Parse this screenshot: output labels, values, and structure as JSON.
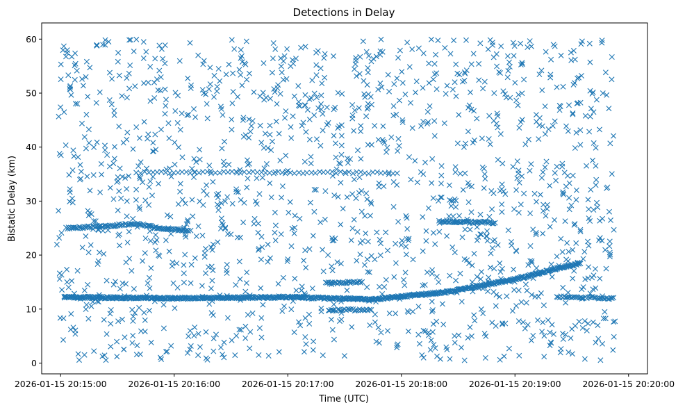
{
  "chart_data": {
    "type": "scatter",
    "title": "Detections in Delay",
    "xlabel": "Time (UTC)",
    "ylabel": "Bistatic Delay (km)",
    "marker": "x",
    "color": "#1f77b4",
    "x_units": "seconds since 2026-01-15 20:15:00",
    "xlim": [
      -10,
      310
    ],
    "ylim": [
      -2,
      63
    ],
    "x_ticks": [
      {
        "value": 0,
        "label": "2026-01-15 20:15:00"
      },
      {
        "value": 60,
        "label": "2026-01-15 20:16:00"
      },
      {
        "value": 120,
        "label": "2026-01-15 20:17:00"
      },
      {
        "value": 180,
        "label": "2026-01-15 20:18:00"
      },
      {
        "value": 240,
        "label": "2026-01-15 20:19:00"
      },
      {
        "value": 300,
        "label": "2026-01-15 20:20:00"
      }
    ],
    "y_ticks": [
      {
        "value": 0,
        "label": "0"
      },
      {
        "value": 10,
        "label": "10"
      },
      {
        "value": 20,
        "label": "20"
      },
      {
        "value": 30,
        "label": "30"
      },
      {
        "value": 40,
        "label": "40"
      },
      {
        "value": 50,
        "label": "50"
      },
      {
        "value": 60,
        "label": "60"
      }
    ],
    "data_x_range": [
      -2,
      293
    ],
    "clutter_count": 1500,
    "tracks": [
      {
        "name": "track-main",
        "points": [
          [
            2,
            12.2
          ],
          [
            60,
            12.0
          ],
          [
            120,
            12.2
          ],
          [
            165,
            11.8
          ],
          [
            205,
            13.2
          ],
          [
            240,
            15.5
          ],
          [
            262,
            17.5
          ],
          [
            275,
            18.5
          ]
        ],
        "spacing": 0.4
      },
      {
        "name": "track-25-early",
        "points": [
          [
            3,
            25.0
          ],
          [
            20,
            25.3
          ],
          [
            40,
            25.8
          ],
          [
            52,
            25.0
          ],
          [
            68,
            24.5
          ]
        ],
        "spacing": 0.6
      },
      {
        "name": "track-26-mid",
        "points": [
          [
            200,
            26.2
          ],
          [
            230,
            26.0
          ]
        ],
        "spacing": 0.6
      },
      {
        "name": "track-right-12",
        "points": [
          [
            262,
            12.3
          ],
          [
            293,
            12.0
          ]
        ],
        "spacing": 0.8
      },
      {
        "name": "track-dip-10",
        "points": [
          [
            142,
            9.8
          ],
          [
            165,
            9.9
          ]
        ],
        "spacing": 0.9
      },
      {
        "name": "track-35-band",
        "points": [
          [
            40,
            35.3
          ],
          [
            150,
            35.3
          ],
          [
            180,
            35.2
          ]
        ],
        "spacing": 2.2
      },
      {
        "name": "track-15-band",
        "points": [
          [
            140,
            14.8
          ],
          [
            160,
            15.0
          ]
        ],
        "spacing": 0.7
      }
    ]
  }
}
